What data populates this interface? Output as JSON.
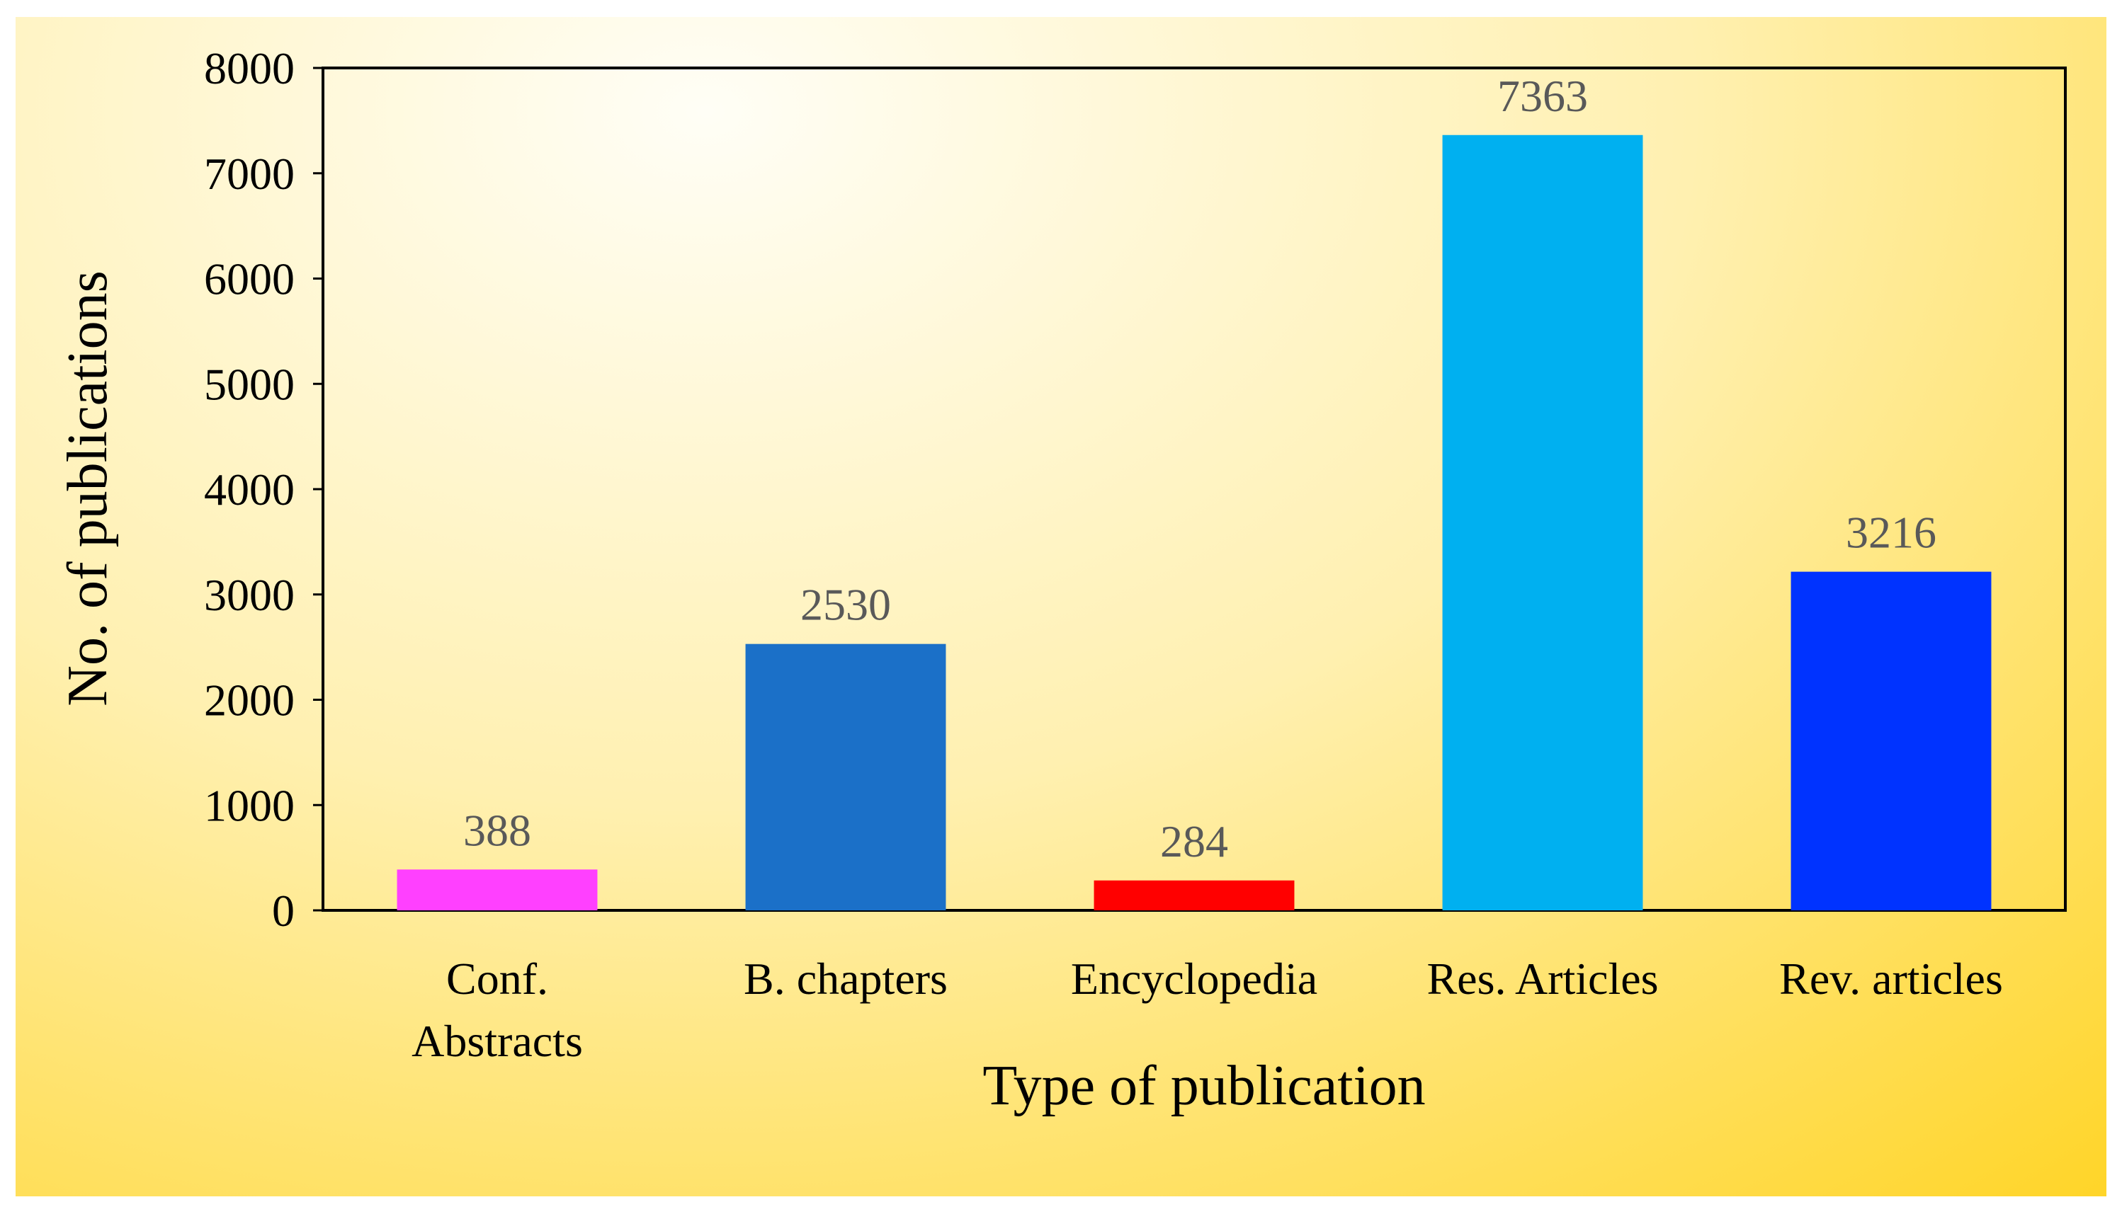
{
  "chart_data": {
    "type": "bar",
    "categories": [
      [
        "Conf.",
        "Abstracts"
      ],
      [
        "B. chapters"
      ],
      [
        "Encyclopedia"
      ],
      [
        "Res. Articles"
      ],
      [
        "Rev. articles"
      ]
    ],
    "values": [
      388,
      2530,
      284,
      7363,
      3216
    ],
    "value_labels": [
      "388",
      "2530",
      "284",
      "7363",
      "3216"
    ],
    "bar_colors": [
      "#FF40FF",
      "#1B70C8",
      "#FF0000",
      "#00B0F0",
      "#0033FF"
    ],
    "xlabel": "Type of publication",
    "ylabel": "No. of publications",
    "ylim": [
      0,
      8000
    ],
    "yticks": [
      "0",
      "1000",
      "2000",
      "3000",
      "4000",
      "5000",
      "6000",
      "7000",
      "8000"
    ],
    "grid": false,
    "legend": "none",
    "background": {
      "gradient_center": "#FFFEF6",
      "gradient_mid": "#FFF0B0",
      "gradient_edge": "#FFD21A"
    }
  }
}
